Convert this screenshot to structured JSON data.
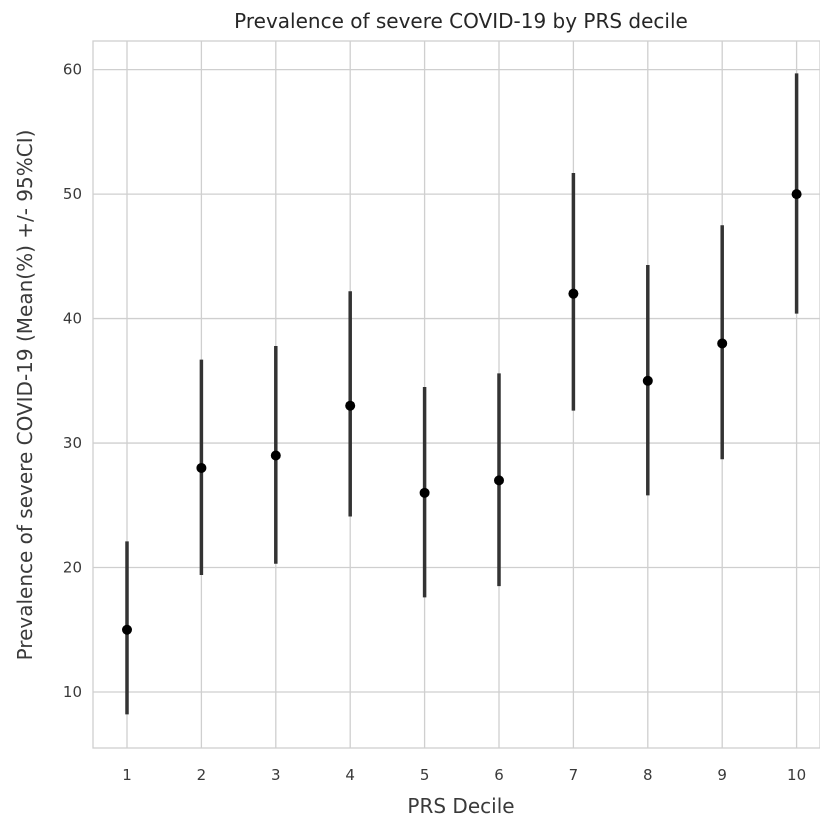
{
  "chart_data": {
    "type": "scatter",
    "title": "Prevalence of severe COVID-19 by PRS decile",
    "xlabel": "PRS Decile",
    "ylabel": "Prevalence of severe COVID-19 (Mean(%) +/- 95%CI)",
    "categories": [
      "1",
      "2",
      "3",
      "4",
      "5",
      "6",
      "7",
      "8",
      "9",
      "10"
    ],
    "series": [
      {
        "mean": [
          15,
          28,
          29,
          33,
          26,
          27,
          42,
          35,
          38,
          50
        ],
        "lower": [
          8.2,
          19.4,
          20.3,
          24.1,
          17.6,
          18.5,
          32.6,
          25.8,
          28.7,
          40.4
        ],
        "upper": [
          22.1,
          36.7,
          37.8,
          42.2,
          34.5,
          35.6,
          51.7,
          44.3,
          47.5,
          59.7
        ]
      }
    ],
    "ylim": [
      5.5,
      62.3
    ],
    "yticks": [
      10,
      20,
      30,
      40,
      50,
      60
    ],
    "grid": true,
    "legend": "none",
    "colors": {
      "point": "#000000",
      "errorbar": "#333333",
      "grid": "#cfcfcf"
    }
  }
}
